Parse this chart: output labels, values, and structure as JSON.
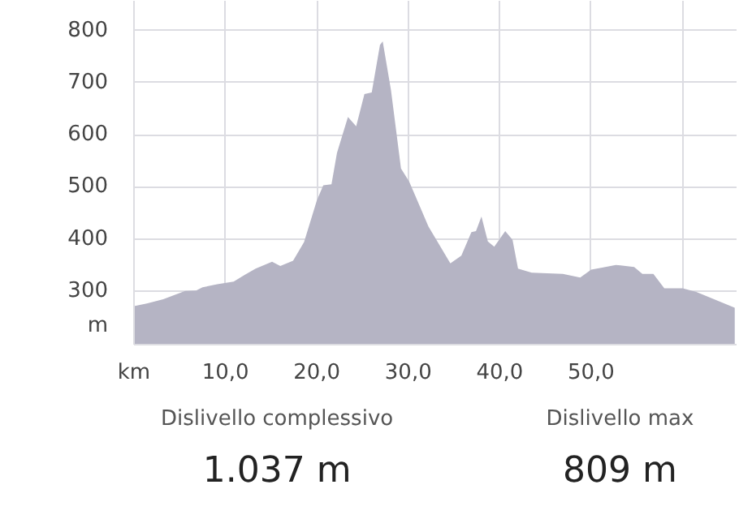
{
  "chart_data": {
    "type": "area",
    "color": "#b5b4c4",
    "x": [
      0,
      1.4,
      3.2,
      5.6,
      6.8,
      7.5,
      9.1,
      10.9,
      12.1,
      13.3,
      15.1,
      16,
      17.4,
      18.6,
      20,
      20.7,
      21.6,
      22.2,
      23.4,
      24.3,
      25.2,
      26,
      26.9,
      27.2,
      28.1,
      29.2,
      30.1,
      32.2,
      34.6,
      35.8,
      36.9,
      37.4,
      38,
      38.7,
      39.4,
      40.6,
      41.4,
      42,
      43.5,
      46.9,
      48.8,
      50,
      51.2,
      52.7,
      54.7,
      55.6,
      56.8,
      58,
      60,
      61.5,
      63.6,
      65.7
    ],
    "values": [
      271,
      276,
      284,
      300,
      301,
      307,
      313,
      318,
      331,
      343,
      356,
      348,
      358,
      394,
      474,
      503,
      505,
      565,
      634,
      616,
      678,
      681,
      772,
      779,
      686,
      535,
      510,
      424,
      353,
      368,
      413,
      415,
      443,
      395,
      385,
      415,
      398,
      343,
      335,
      333,
      326,
      341,
      345,
      350,
      346,
      333,
      333,
      305,
      305,
      298,
      283,
      268
    ],
    "xlim": [
      0,
      65.9
    ],
    "ylim": [
      197,
      857
    ],
    "xticks": [
      {
        "value": 0,
        "label": "km"
      },
      {
        "value": 10,
        "label": "10,0"
      },
      {
        "value": 20,
        "label": "20,0"
      },
      {
        "value": 30,
        "label": "30,0"
      },
      {
        "value": 40,
        "label": "40,0"
      },
      {
        "value": 50,
        "label": "50,0"
      },
      {
        "value": 60,
        "label": null
      }
    ],
    "yticks": [
      {
        "value": 233,
        "label": "m"
      },
      300,
      400,
      500,
      600,
      700,
      800
    ],
    "grid": true,
    "annotations": [
      "Dislivello complessivo",
      "1.037 m",
      "Dislivello max",
      "809 m"
    ]
  }
}
